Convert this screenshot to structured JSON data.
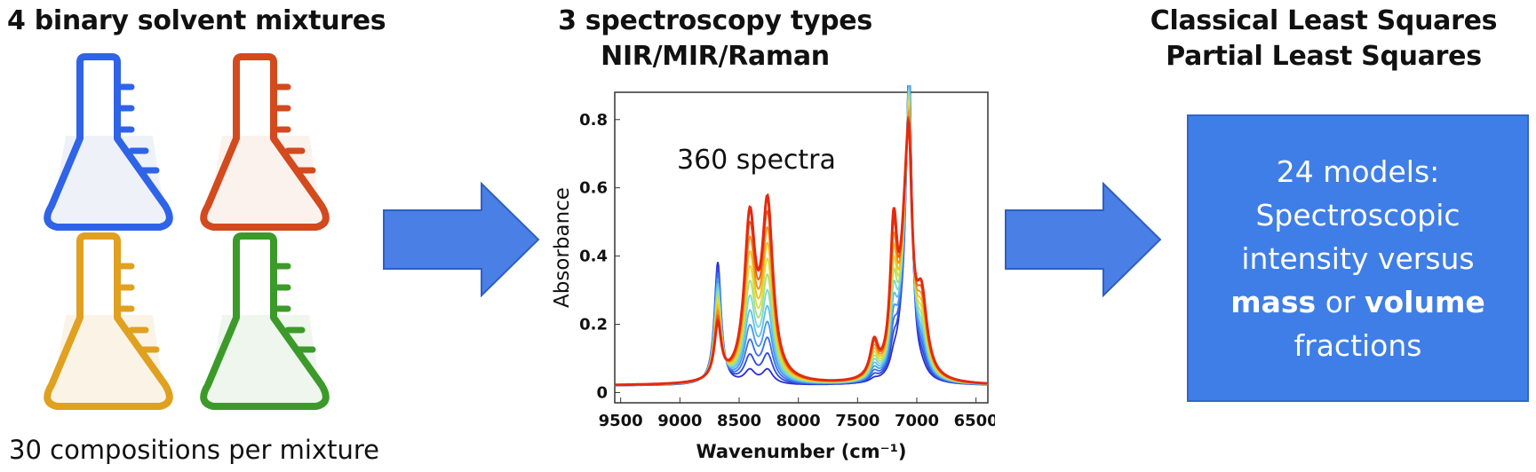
{
  "panels": {
    "left": {
      "title": "4 binary solvent mixtures",
      "caption_a": "30 compositions",
      "caption_b": "per mixture",
      "flask_colors": [
        "#2f63e8",
        "#d24a1e",
        "#e0a020",
        "#3c9a2a"
      ],
      "flask_fills": [
        "#eef2f8",
        "#fbf2ee",
        "#fbf4e6",
        "#eef6ee"
      ]
    },
    "middle": {
      "title_line1": "3 spectroscopy types",
      "title_line2": "NIR/MIR/Raman"
    },
    "right": {
      "title_line1": "Classical Least Squares",
      "title_line2": "Partial Least Squares",
      "box_line1": "24 models:",
      "box_line2": "Spectroscopic",
      "box_line3": "intensity versus",
      "box_line4_bold1": "mass",
      "box_line4_mid": " or ",
      "box_line4_bold2": "volume",
      "box_line5": "fractions"
    }
  },
  "colors": {
    "arrow": "#4a7fe6",
    "box": "#3f7ee6"
  },
  "chart_data": {
    "type": "line",
    "annotation": "360 spectra",
    "xlabel": "Wavenumber (cm⁻¹)",
    "ylabel": "Absorbance",
    "xlim": [
      9550,
      6400
    ],
    "ylim": [
      -0.03,
      0.88
    ],
    "x_reversed": true,
    "xticks": [
      9500,
      9000,
      8500,
      8000,
      7500,
      7000,
      6500
    ],
    "yticks": [
      0,
      0.2,
      0.4,
      0.6,
      0.8
    ],
    "ytick_labels": [
      "0",
      "0.2",
      "0.4",
      "0.6",
      "0.8"
    ],
    "series_count": 12,
    "series_colors": [
      "#2a2fd0",
      "#2f48e0",
      "#3a6ee8",
      "#4a96ee",
      "#5cc0ec",
      "#7ed8d0",
      "#a8e07a",
      "#d8e040",
      "#f2c020",
      "#f39018",
      "#ee5a14",
      "#e42a10"
    ],
    "low_component_peaks": [
      {
        "x": 8680,
        "y": 0.36,
        "width": 35
      },
      {
        "x": 7065,
        "y": 0.86,
        "width": 28
      },
      {
        "x": 7120,
        "y": 0.12,
        "width": 60
      }
    ],
    "high_component_peaks": [
      {
        "x": 8410,
        "y": 0.46,
        "width": 55
      },
      {
        "x": 8260,
        "y": 0.5,
        "width": 55
      },
      {
        "x": 7360,
        "y": 0.1,
        "width": 40
      },
      {
        "x": 7195,
        "y": 0.4,
        "width": 35
      },
      {
        "x": 7090,
        "y": 0.34,
        "width": 50
      },
      {
        "x": 6960,
        "y": 0.22,
        "width": 55
      }
    ],
    "baseline": 0.02
  }
}
